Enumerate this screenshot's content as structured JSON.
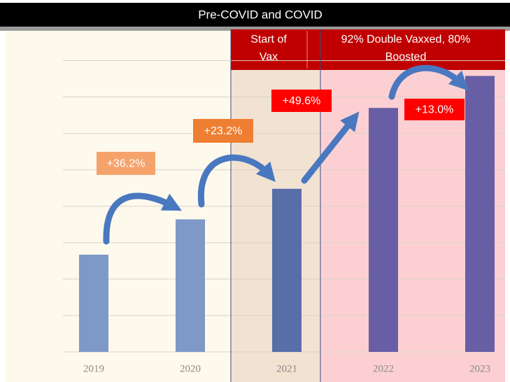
{
  "chart_data": {
    "type": "bar",
    "title": "Pre-COVID and COVID",
    "categories": [
      "2019",
      "2020",
      "2021",
      "2022",
      "2023"
    ],
    "values": [
      2.67,
      3.64,
      4.48,
      6.7,
      7.58
    ],
    "colors": [
      "#7e99c8",
      "#7e99c8",
      "#586ea9",
      "#675ea6",
      "#675ea6"
    ],
    "ylim": [
      0,
      8.8
    ],
    "yticks": [
      0,
      1,
      2,
      3,
      4,
      5,
      6,
      7,
      8
    ],
    "grid": true,
    "regions": [
      "Start of Vax",
      "92% Double Vaxxed, 80% Boosted"
    ],
    "annotations": [
      "+36.2%",
      "+23.2%",
      "+49.6%",
      "+13.0%"
    ]
  }
}
